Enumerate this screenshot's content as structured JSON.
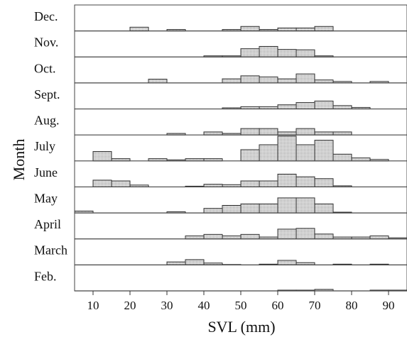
{
  "chart_data": {
    "type": "bar",
    "xlabel": "SVL (mm)",
    "ylabel": "Month",
    "xlim": [
      5,
      95
    ],
    "x_ticks": [
      "10",
      "20",
      "30",
      "40",
      "50",
      "60",
      "70",
      "80",
      "90"
    ],
    "bin_width": 5,
    "bin_left_edges": [
      5,
      10,
      15,
      20,
      25,
      30,
      35,
      40,
      45,
      50,
      55,
      60,
      65,
      70,
      75,
      80,
      85,
      90
    ],
    "grid": false,
    "series": [
      {
        "name": "Dec.",
        "values": [
          0,
          0,
          0,
          1,
          0,
          0.4,
          0,
          0,
          0.4,
          1.2,
          0.4,
          0.8,
          0.8,
          1.2,
          0,
          0,
          0,
          0
        ]
      },
      {
        "name": "Nov.",
        "values": [
          0,
          0,
          0,
          0,
          0,
          0,
          0,
          0.3,
          0.3,
          2.2,
          2.8,
          2.0,
          1.9,
          0.3,
          0,
          0,
          0,
          0
        ]
      },
      {
        "name": "Oct.",
        "values": [
          0,
          0,
          0,
          0,
          1.0,
          0,
          0,
          0,
          1.1,
          1.9,
          1.6,
          1.1,
          2.4,
          0.8,
          0.4,
          0,
          0.4,
          0
        ]
      },
      {
        "name": "Sept.",
        "values": [
          0,
          0,
          0,
          0,
          0,
          0,
          0,
          0,
          0.3,
          0.6,
          0.6,
          1.1,
          1.7,
          2.1,
          0.9,
          0.4,
          0,
          0
        ]
      },
      {
        "name": "Aug.",
        "values": [
          0,
          0,
          0,
          0,
          0,
          0.4,
          0,
          0.8,
          0.4,
          1.7,
          1.7,
          0.8,
          1.7,
          0.8,
          0.8,
          0,
          0,
          0
        ]
      },
      {
        "name": "July",
        "values": [
          0,
          2.5,
          0.6,
          0,
          0.6,
          0.3,
          0.6,
          0.6,
          0,
          3.0,
          4.3,
          6.6,
          4.3,
          5.5,
          1.8,
          0.8,
          0.4,
          0
        ]
      },
      {
        "name": "June",
        "values": [
          0,
          1.8,
          1.6,
          0.5,
          0,
          0,
          0.2,
          0.7,
          0.6,
          1.6,
          1.6,
          3.4,
          2.7,
          2.2,
          0.3,
          0,
          0,
          0
        ]
      },
      {
        "name": "May",
        "values": [
          0.5,
          0,
          0,
          0,
          0,
          0.3,
          0,
          1.2,
          2.0,
          2.4,
          2.4,
          4.0,
          4.0,
          2.4,
          0.2,
          0,
          0,
          0
        ]
      },
      {
        "name": "April",
        "values": [
          0,
          0,
          0,
          0,
          0,
          0,
          0.8,
          1.2,
          0.8,
          1.2,
          0.5,
          2.6,
          2.8,
          1.3,
          0.5,
          0.5,
          0.8,
          0.3
        ]
      },
      {
        "name": "March",
        "values": [
          0,
          0,
          0,
          0,
          0,
          0.8,
          1.4,
          0.5,
          0.1,
          0,
          0.2,
          1.2,
          0.6,
          0,
          0.2,
          0,
          0.2,
          0
        ]
      },
      {
        "name": "Feb.",
        "values": [
          0,
          0,
          0,
          0,
          0,
          0,
          0,
          0,
          0,
          0,
          0,
          0.2,
          0.2,
          0.4,
          0,
          0,
          0.2,
          0.2
        ]
      }
    ]
  }
}
